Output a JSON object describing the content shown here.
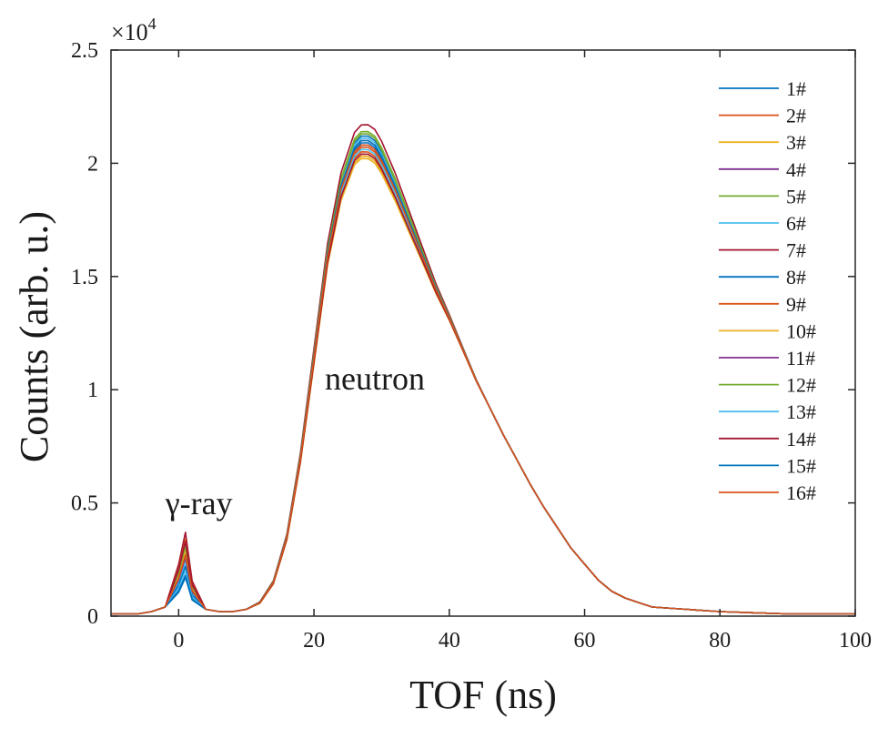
{
  "chart_data": {
    "type": "line",
    "xlabel": "TOF (ns)",
    "ylabel": "Counts (arb. u.)",
    "y_multiplier": "×10",
    "y_multiplier_exp": "4",
    "xlim": [
      -10,
      100
    ],
    "ylim": [
      0,
      2.5
    ],
    "xticks": [
      0,
      20,
      40,
      60,
      80,
      100
    ],
    "yticks": [
      0,
      0.5,
      1,
      1.5,
      2,
      2.5
    ],
    "ytick_labels": [
      "0",
      "0.5",
      "1",
      "1.5",
      "2",
      "2.5"
    ],
    "legend_position": "top-right",
    "annotations": [
      {
        "text": "γ-ray",
        "x": 3,
        "y": 0.45
      },
      {
        "text": "neutron",
        "x": 29,
        "y": 1.0
      }
    ],
    "x": [
      -10,
      -6,
      -4,
      -2,
      0,
      1,
      2,
      4,
      6,
      8,
      10,
      12,
      14,
      16,
      18,
      20,
      22,
      24,
      26,
      27,
      28,
      29,
      30,
      32,
      34,
      36,
      38,
      40,
      42,
      44,
      46,
      48,
      50,
      52,
      54,
      56,
      58,
      60,
      62,
      64,
      66,
      68,
      70,
      75,
      80,
      85,
      90,
      95,
      100
    ],
    "base_profile": [
      0.01,
      0.01,
      0.02,
      0.04,
      0.0,
      0.0,
      0.0,
      0.03,
      0.02,
      0.02,
      0.03,
      0.06,
      0.15,
      0.35,
      0.7,
      1.15,
      1.6,
      1.9,
      2.07,
      2.1,
      2.1,
      2.08,
      2.03,
      1.9,
      1.75,
      1.6,
      1.45,
      1.32,
      1.18,
      1.04,
      0.92,
      0.8,
      0.69,
      0.58,
      0.48,
      0.39,
      0.3,
      0.23,
      0.16,
      0.11,
      0.08,
      0.06,
      0.04,
      0.03,
      0.02,
      0.015,
      0.01,
      0.01,
      0.01
    ],
    "series": [
      {
        "name": "1#",
        "color": "#0072BD",
        "peak": 2.12,
        "gamma": 0.17
      },
      {
        "name": "2#",
        "color": "#D95319",
        "peak": 2.07,
        "gamma": 0.3
      },
      {
        "name": "3#",
        "color": "#EDB120",
        "peak": 2.03,
        "gamma": 0.32
      },
      {
        "name": "4#",
        "color": "#7E2F8E",
        "peak": 2.1,
        "gamma": 0.25
      },
      {
        "name": "5#",
        "color": "#77AC30",
        "peak": 2.14,
        "gamma": 0.28
      },
      {
        "name": "6#",
        "color": "#4DBEEE",
        "peak": 2.11,
        "gamma": 0.24
      },
      {
        "name": "7#",
        "color": "#A2142F",
        "peak": 2.17,
        "gamma": 0.37
      },
      {
        "name": "8#",
        "color": "#0072BD",
        "peak": 2.09,
        "gamma": 0.22
      },
      {
        "name": "9#",
        "color": "#D95319",
        "peak": 2.05,
        "gamma": 0.34
      },
      {
        "name": "10#",
        "color": "#EDB120",
        "peak": 2.02,
        "gamma": 0.29
      },
      {
        "name": "11#",
        "color": "#7E2F8E",
        "peak": 2.08,
        "gamma": 0.26
      },
      {
        "name": "12#",
        "color": "#77AC30",
        "peak": 2.13,
        "gamma": 0.31
      },
      {
        "name": "13#",
        "color": "#4DBEEE",
        "peak": 2.06,
        "gamma": 0.2
      },
      {
        "name": "14#",
        "color": "#A2142F",
        "peak": 2.04,
        "gamma": 0.33
      },
      {
        "name": "15#",
        "color": "#0072BD",
        "peak": 2.1,
        "gamma": 0.18
      },
      {
        "name": "16#",
        "color": "#D95319",
        "peak": 2.08,
        "gamma": 0.27
      }
    ]
  }
}
